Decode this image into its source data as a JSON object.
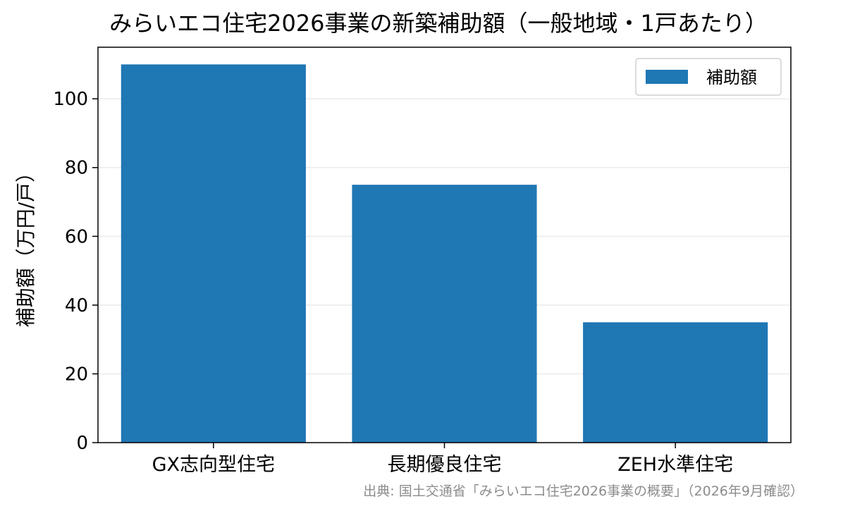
{
  "chart_data": {
    "type": "bar",
    "title": "みらいエコ住宅2026事業の新築補助額（一般地域・1戸あたり）",
    "xlabel": "",
    "ylabel": "補助額（万円/戸）",
    "categories": [
      "GX志向型住宅",
      "長期優良住宅",
      "ZEH水準住宅"
    ],
    "series": [
      {
        "name": "補助額",
        "values": [
          110,
          75,
          35
        ],
        "color": "#1f77b4"
      }
    ],
    "ylim": [
      0,
      115
    ],
    "yticks": [
      0,
      20,
      40,
      60,
      80,
      100
    ],
    "grid": "y",
    "legend_position": "top-right",
    "source": "出典: 国土交通省「みらいエコ住宅2026事業の概要」（2026年9月確認）"
  }
}
